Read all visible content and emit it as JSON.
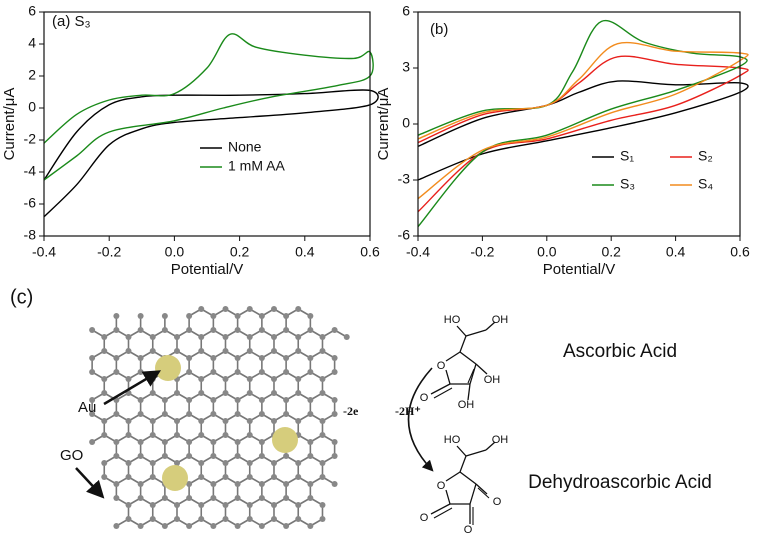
{
  "chart_data": [
    {
      "type": "line",
      "panel_label": "(a) S₃",
      "xlabel": "Potential/V",
      "ylabel": "Current/μA",
      "xlim": [
        -0.4,
        0.6
      ],
      "xticks": [
        -0.4,
        -0.2,
        {
          "value": 0,
          "label": "0.0"
        },
        0.2,
        0.4,
        0.6
      ],
      "ylim": [
        -8,
        6
      ],
      "yticks": [
        -8,
        -6,
        -4,
        -2,
        0,
        2,
        4,
        6
      ],
      "series": [
        {
          "name": "None",
          "color": "#000000",
          "x": [
            -0.4,
            -0.3,
            -0.2,
            -0.1,
            0,
            0.2,
            0.4,
            0.6,
            0.6,
            0.4,
            0.2,
            0,
            -0.1,
            -0.2,
            -0.3,
            -0.4
          ],
          "values": [
            -4.5,
            -1.5,
            0.2,
            0.7,
            0.8,
            0.8,
            0.9,
            1.1,
            0.2,
            -0.3,
            -0.6,
            -0.9,
            -1.3,
            -2.3,
            -4.8,
            -6.8
          ]
        },
        {
          "name": "1 mM AA",
          "color": "#1a8a1a",
          "x": [
            -0.4,
            -0.3,
            -0.2,
            -0.1,
            0,
            0.1,
            0.17,
            0.25,
            0.4,
            0.55,
            0.6,
            0.6,
            0.5,
            0.3,
            0.15,
            0,
            -0.2,
            -0.3,
            -0.4
          ],
          "values": [
            -2.2,
            -0.4,
            0.5,
            0.8,
            0.9,
            2.5,
            4.6,
            3.8,
            3.3,
            3.1,
            3.5,
            2.0,
            1.4,
            0.7,
            0.0,
            -0.8,
            -1.5,
            -3.0,
            -4.5
          ]
        }
      ]
    },
    {
      "type": "line",
      "panel_label": "(b)",
      "xlabel": "Potential/V",
      "ylabel": "Current/μA",
      "xlim": [
        -0.4,
        0.6
      ],
      "xticks": [
        -0.4,
        -0.2,
        {
          "value": 0,
          "label": "0.0"
        },
        0.2,
        0.4,
        0.6
      ],
      "ylim": [
        -6,
        6
      ],
      "yticks": [
        -6,
        -3,
        0,
        3,
        6
      ],
      "series": [
        {
          "name": "S₁",
          "color": "#000000",
          "x": [
            -0.4,
            -0.2,
            0,
            0.1,
            0.22,
            0.4,
            0.6,
            0.6,
            0.4,
            0.2,
            0,
            -0.2,
            -0.4
          ],
          "values": [
            -1.2,
            0.3,
            1.0,
            1.7,
            2.3,
            2.1,
            2.2,
            1.7,
            0.6,
            -0.2,
            -0.9,
            -1.6,
            -3.0
          ]
        },
        {
          "name": "S₂",
          "color": "#e8201c",
          "x": [
            -0.4,
            -0.2,
            0,
            0.1,
            0.22,
            0.4,
            0.6,
            0.6,
            0.4,
            0.2,
            0,
            -0.2,
            -0.4
          ],
          "values": [
            -1.0,
            0.5,
            1.0,
            2.2,
            3.6,
            3.2,
            3.0,
            2.6,
            1.0,
            0.2,
            -0.8,
            -1.5,
            -4.7
          ]
        },
        {
          "name": "S₃",
          "color": "#1a8a1a",
          "x": [
            -0.4,
            -0.2,
            0,
            0.08,
            0.17,
            0.3,
            0.45,
            0.6,
            0.6,
            0.4,
            0.2,
            0,
            -0.2,
            -0.4
          ],
          "values": [
            -0.6,
            0.7,
            1.0,
            2.8,
            5.5,
            4.4,
            3.8,
            3.6,
            3.1,
            1.8,
            0.8,
            -0.6,
            -1.5,
            -5.5
          ]
        },
        {
          "name": "S₄",
          "color": "#f28c1e",
          "x": [
            -0.4,
            -0.2,
            0,
            0.1,
            0.22,
            0.4,
            0.6,
            0.6,
            0.4,
            0.2,
            0,
            -0.2,
            -0.4
          ],
          "values": [
            -0.8,
            0.6,
            1.0,
            2.4,
            4.3,
            3.9,
            3.8,
            3.4,
            1.6,
            0.6,
            -0.7,
            -1.4,
            -4.0
          ]
        }
      ]
    }
  ],
  "diagram": {
    "panel_label": "(c)",
    "au": "Au",
    "go": "GO",
    "electrons": "-2e",
    "protons": "-2H⁺",
    "molecules": [
      {
        "name": "Ascorbic Acid",
        "atoms": [
          "HO",
          "OH",
          "O",
          "O",
          "OH",
          "OH"
        ]
      },
      {
        "name": "Dehydroascorbic Acid",
        "atoms": [
          "HO",
          "OH",
          "O",
          "O",
          "O",
          "O"
        ]
      }
    ]
  }
}
